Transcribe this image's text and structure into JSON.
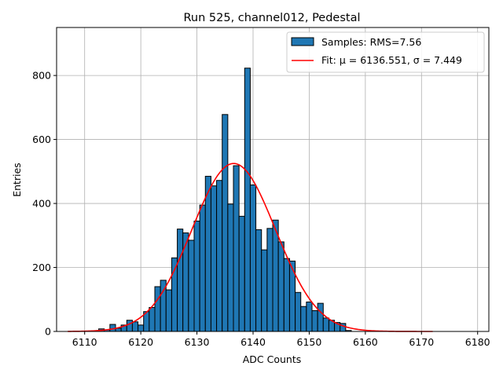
{
  "chart_data": {
    "type": "bar",
    "title": "Run 525, channel012, Pedestal",
    "xlabel": "ADC Counts",
    "ylabel": "Entries",
    "xlim": [
      6105,
      6182
    ],
    "ylim": [
      0,
      950
    ],
    "xticks": [
      6110,
      6120,
      6130,
      6140,
      6150,
      6160,
      6170,
      6180
    ],
    "yticks": [
      0,
      200,
      400,
      600,
      800
    ],
    "grid": true,
    "legend_position": "top-right",
    "bin_width": 1,
    "series": [
      {
        "name": "Samples: RMS=7.56",
        "type": "histogram",
        "color": "#1f77b4",
        "edgecolor": "#000000",
        "x": [
          6113,
          6114,
          6115,
          6116,
          6117,
          6118,
          6119,
          6120,
          6121,
          6122,
          6123,
          6124,
          6125,
          6126,
          6127,
          6128,
          6129,
          6130,
          6131,
          6132,
          6133,
          6134,
          6135,
          6136,
          6137,
          6138,
          6139,
          6140,
          6141,
          6142,
          6143,
          6144,
          6145,
          6146,
          6147,
          6148,
          6149,
          6150,
          6151,
          6152,
          6153,
          6154,
          6155,
          6156,
          6157
        ],
        "values": [
          8,
          5,
          22,
          10,
          20,
          35,
          30,
          20,
          62,
          75,
          140,
          160,
          130,
          230,
          320,
          308,
          285,
          345,
          395,
          485,
          455,
          472,
          678,
          398,
          518,
          360,
          823,
          458,
          318,
          255,
          322,
          348,
          280,
          228,
          220,
          122,
          78,
          92,
          65,
          88,
          42,
          35,
          28,
          25,
          3
        ]
      },
      {
        "name": "Fit: μ = 6136.551, σ = 7.449",
        "type": "line",
        "color": "#ff0000",
        "mu": 6136.551,
        "sigma": 7.449,
        "amplitude": 525,
        "x_range": [
          6107,
          6172
        ]
      }
    ]
  }
}
